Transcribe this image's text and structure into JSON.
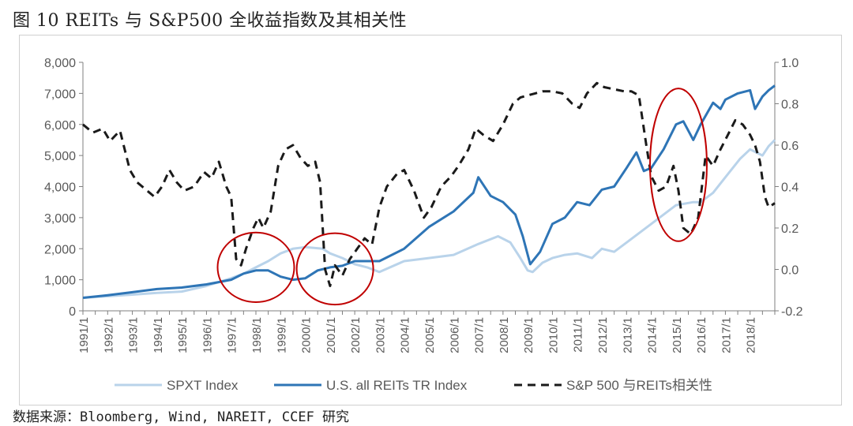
{
  "title": "图 10 REITs 与 S&P500 全收益指数及其相关性",
  "source": "数据来源：Bloomberg, Wind, NAREIT, CCEF 研究",
  "colors": {
    "spxt": "#b9d3ea",
    "reits": "#2e75b6",
    "corr": "#1a1a1a",
    "circle": "#c00000",
    "axis": "#7f7f7f",
    "text": "#595959"
  },
  "chart_data": {
    "type": "line",
    "title": "",
    "x_start": 1991.0,
    "x_end": 2019.0,
    "x_ticks": [
      "1991/1",
      "1992/1",
      "1993/1",
      "1994/1",
      "1995/1",
      "1996/1",
      "1997/1",
      "1998/1",
      "1999/1",
      "2000/1",
      "2001/1",
      "2002/1",
      "2003/1",
      "2004/1",
      "2005/1",
      "2006/1",
      "2007/1",
      "2008/1",
      "2009/1",
      "2010/1",
      "2011/1",
      "2012/1",
      "2013/1",
      "2014/1",
      "2015/1",
      "2016/1",
      "2017/1",
      "2018/1"
    ],
    "y_left": {
      "min": 0,
      "max": 8000,
      "ticks": [
        0,
        1000,
        2000,
        3000,
        4000,
        5000,
        6000,
        7000,
        8000
      ],
      "tick_labels": [
        "0",
        "1,000",
        "2,000",
        "3,000",
        "4,000",
        "5,000",
        "6,000",
        "7,000",
        "8,000"
      ]
    },
    "y_right": {
      "min": -0.2,
      "max": 1.0,
      "ticks": [
        -0.2,
        0,
        0.2,
        0.4,
        0.6,
        0.8,
        1.0
      ],
      "tick_labels": [
        "-0.2",
        "0.0",
        "0.2",
        "0.4",
        "0.6",
        "0.8",
        "1.0"
      ]
    },
    "series": [
      {
        "name": "SPXT Index",
        "axis": "left",
        "style": "solid-light",
        "x": [
          1991.0,
          1992.0,
          1993.0,
          1994.0,
          1995.0,
          1996.0,
          1997.0,
          1997.5,
          1998.0,
          1998.5,
          1999.0,
          1999.5,
          2000.0,
          2000.7,
          2001.0,
          2001.5,
          2002.0,
          2002.5,
          2003.0,
          2004.0,
          2005.0,
          2006.0,
          2007.0,
          2007.8,
          2008.3,
          2008.7,
          2009.0,
          2009.2,
          2009.6,
          2010.0,
          2010.5,
          2011.0,
          2011.6,
          2012.0,
          2012.5,
          2013.0,
          2014.0,
          2015.0,
          2015.7,
          2016.0,
          2016.5,
          2017.0,
          2017.6,
          2018.0,
          2018.5,
          2018.75,
          2019.0
        ],
        "y": [
          420,
          470,
          520,
          580,
          620,
          800,
          1050,
          1200,
          1400,
          1600,
          1850,
          2000,
          2050,
          2000,
          1850,
          1700,
          1500,
          1400,
          1250,
          1600,
          1700,
          1800,
          2150,
          2400,
          2200,
          1700,
          1300,
          1250,
          1550,
          1700,
          1800,
          1850,
          1700,
          2000,
          1900,
          2200,
          2800,
          3400,
          3500,
          3500,
          3800,
          4300,
          4900,
          5200,
          5000,
          5300,
          5500
        ]
      },
      {
        "name": "U.S. all REITs TR Index",
        "axis": "left",
        "style": "solid-dark",
        "x": [
          1991.0,
          1992.0,
          1993.0,
          1994.0,
          1995.0,
          1996.0,
          1997.0,
          1997.5,
          1998.0,
          1998.5,
          1999.0,
          1999.5,
          2000.0,
          2000.5,
          2001.0,
          2001.5,
          2002.0,
          2002.5,
          2003.0,
          2004.0,
          2005.0,
          2006.0,
          2006.8,
          2007.0,
          2007.5,
          2008.0,
          2008.5,
          2008.8,
          2009.1,
          2009.5,
          2010.0,
          2010.5,
          2011.0,
          2011.5,
          2012.0,
          2012.5,
          2013.0,
          2013.4,
          2013.7,
          2014.0,
          2014.5,
          2015.0,
          2015.3,
          2015.7,
          2016.0,
          2016.5,
          2016.8,
          2017.0,
          2017.5,
          2018.0,
          2018.2,
          2018.5,
          2018.75,
          2019.0
        ],
        "y": [
          420,
          500,
          600,
          700,
          750,
          850,
          1000,
          1200,
          1300,
          1300,
          1100,
          1000,
          1050,
          1300,
          1400,
          1450,
          1600,
          1600,
          1600,
          2000,
          2700,
          3200,
          3800,
          4300,
          3700,
          3500,
          3100,
          2400,
          1500,
          1900,
          2800,
          3000,
          3500,
          3400,
          3900,
          4000,
          4600,
          5100,
          4500,
          4600,
          5200,
          6000,
          6100,
          5500,
          6000,
          6700,
          6500,
          6800,
          7000,
          7100,
          6500,
          6900,
          7100,
          7250
        ]
      },
      {
        "name": "S&P 500 与REITs相关性",
        "axis": "right",
        "style": "dashed",
        "x": [
          1991.0,
          1991.4,
          1991.8,
          1992.1,
          1992.5,
          1992.9,
          1993.2,
          1993.6,
          1993.9,
          1994.2,
          1994.5,
          1994.8,
          1995.1,
          1995.5,
          1995.9,
          1996.2,
          1996.5,
          1996.8,
          1997.0,
          1997.2,
          1997.4,
          1997.6,
          1997.9,
          1998.1,
          1998.3,
          1998.6,
          1998.9,
          1999.2,
          1999.5,
          1999.8,
          2000.1,
          2000.4,
          2000.6,
          2000.8,
          2001.0,
          2001.2,
          2001.5,
          2001.8,
          2002.1,
          2002.4,
          2002.7,
          2003.0,
          2003.3,
          2003.7,
          2004.0,
          2004.4,
          2004.8,
          2005.1,
          2005.5,
          2005.9,
          2006.2,
          2006.6,
          2006.9,
          2007.2,
          2007.6,
          2008.0,
          2008.4,
          2008.7,
          2009.0,
          2009.3,
          2009.6,
          2010.0,
          2010.4,
          2010.8,
          2011.1,
          2011.4,
          2011.8,
          2012.1,
          2012.5,
          2012.9,
          2013.2,
          2013.5,
          2013.8,
          2014.0,
          2014.3,
          2014.6,
          2014.9,
          2015.1,
          2015.3,
          2015.6,
          2015.9,
          2016.2,
          2016.5,
          2016.8,
          2017.1,
          2017.4,
          2017.7,
          2018.0,
          2018.2,
          2018.4,
          2018.6,
          2018.75,
          2019.0
        ],
        "y": [
          0.7,
          0.66,
          0.68,
          0.62,
          0.67,
          0.48,
          0.42,
          0.38,
          0.35,
          0.4,
          0.48,
          0.42,
          0.38,
          0.4,
          0.47,
          0.44,
          0.52,
          0.4,
          0.35,
          0.05,
          0.02,
          0.1,
          0.2,
          0.25,
          0.2,
          0.28,
          0.5,
          0.58,
          0.6,
          0.54,
          0.5,
          0.52,
          0.42,
          0.0,
          -0.08,
          0.02,
          -0.03,
          0.05,
          0.1,
          0.15,
          0.12,
          0.3,
          0.4,
          0.46,
          0.48,
          0.38,
          0.25,
          0.3,
          0.4,
          0.45,
          0.5,
          0.58,
          0.68,
          0.65,
          0.62,
          0.7,
          0.8,
          0.83,
          0.84,
          0.85,
          0.86,
          0.86,
          0.85,
          0.8,
          0.78,
          0.85,
          0.9,
          0.88,
          0.87,
          0.86,
          0.86,
          0.84,
          0.6,
          0.45,
          0.38,
          0.4,
          0.5,
          0.38,
          0.2,
          0.17,
          0.25,
          0.55,
          0.5,
          0.58,
          0.65,
          0.72,
          0.7,
          0.65,
          0.6,
          0.52,
          0.35,
          0.3,
          0.32
        ]
      }
    ],
    "legend": [
      "SPXT Index",
      "U.S. all REITs TR Index",
      "S&P 500 与REITs相关性"
    ],
    "legend_position": "bottom",
    "annotations": [
      {
        "type": "circle",
        "center": [
          1998.0,
          1400
        ],
        "radius_x_years": 1.55,
        "radius_y_value": 1120
      },
      {
        "type": "circle",
        "center": [
          2001.2,
          1350
        ],
        "radius_x_years": 1.55,
        "radius_y_value": 1150
      },
      {
        "type": "circle",
        "center": [
          2015.1,
          4700
        ],
        "radius_x_years": 1.15,
        "radius_y_value": 2460
      }
    ]
  }
}
